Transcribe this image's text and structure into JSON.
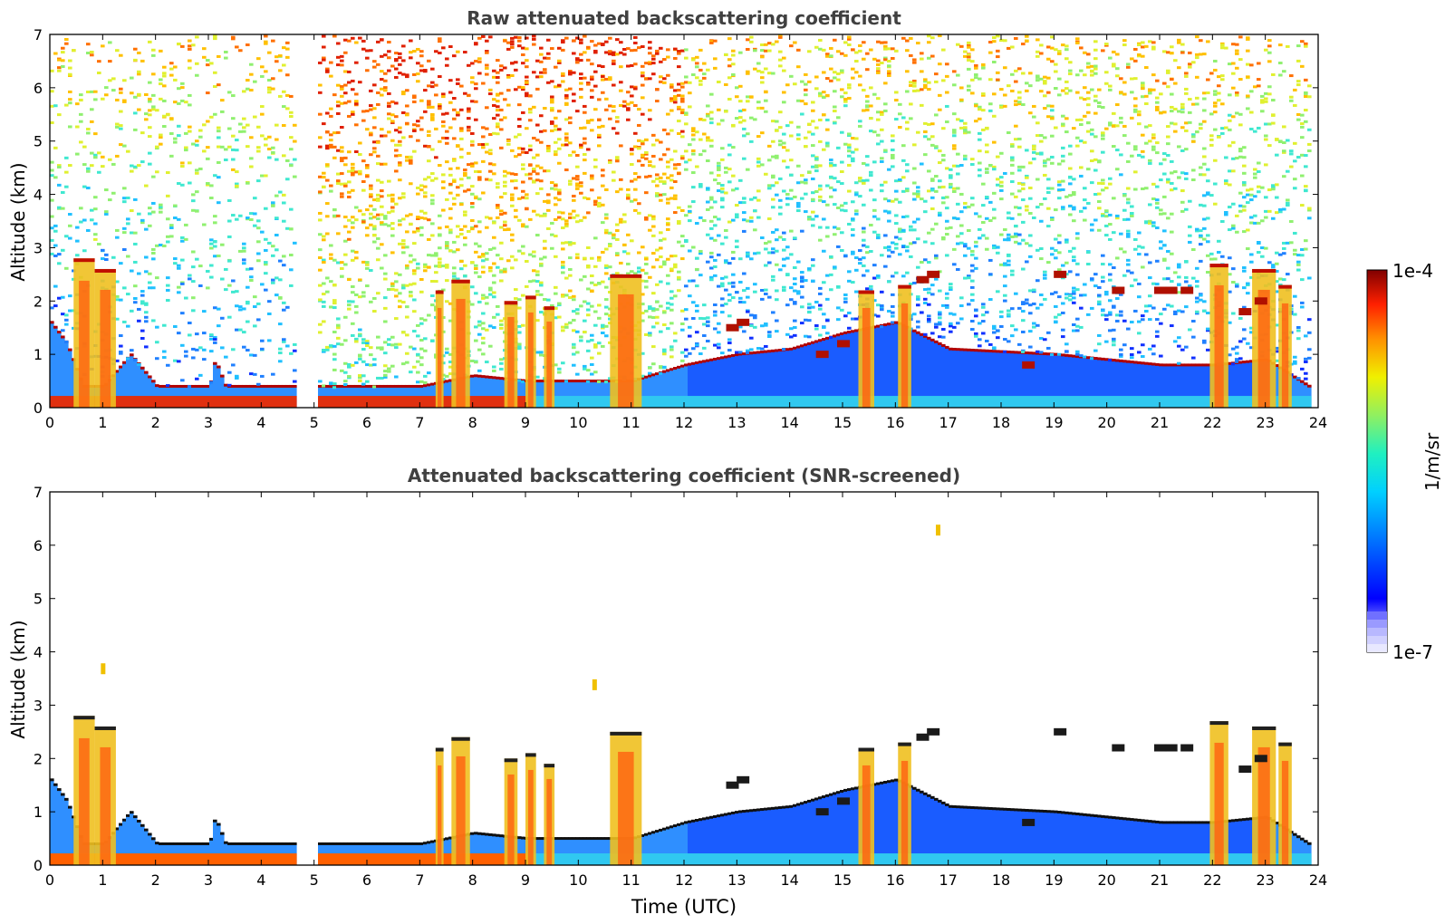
{
  "chart_data": [
    {
      "type": "heatmap",
      "title": "Raw attenuated backscattering coefficient",
      "xlabel": "",
      "ylabel": "Altitude (km)",
      "xlim": [
        0,
        24
      ],
      "ylim": [
        0,
        7
      ],
      "xticks": [
        "0",
        "1",
        "2",
        "3",
        "4",
        "5",
        "6",
        "7",
        "8",
        "9",
        "10",
        "11",
        "12",
        "13",
        "14",
        "15",
        "16",
        "17",
        "18",
        "19",
        "20",
        "21",
        "22",
        "23",
        "24"
      ],
      "yticks": [
        "0",
        "1",
        "2",
        "3",
        "4",
        "5",
        "6",
        "7"
      ],
      "data_gap_hours": [
        4.6,
        5.05
      ],
      "data_end_hour": 23.8,
      "features": {
        "boundary_layer_top_km": [
          [
            0,
            1.6
          ],
          [
            0.3,
            1.2
          ],
          [
            0.6,
            0.4
          ],
          [
            1,
            0.4
          ],
          [
            1.5,
            1.0
          ],
          [
            2,
            0.4
          ],
          [
            3,
            0.4
          ],
          [
            3.1,
            0.9
          ],
          [
            3.3,
            0.4
          ],
          [
            4.6,
            0.4
          ],
          [
            5.05,
            0.4
          ],
          [
            7,
            0.4
          ],
          [
            8,
            0.6
          ],
          [
            9,
            0.5
          ],
          [
            11,
            0.5
          ],
          [
            12,
            0.8
          ],
          [
            13,
            1.0
          ],
          [
            14,
            1.1
          ],
          [
            15,
            1.4
          ],
          [
            16,
            1.6
          ],
          [
            17,
            1.1
          ],
          [
            19,
            1.0
          ],
          [
            20,
            0.9
          ],
          [
            21,
            0.8
          ],
          [
            22,
            0.8
          ],
          [
            23,
            0.9
          ],
          [
            23.8,
            0.4
          ]
        ],
        "cloud_columns": [
          {
            "start": 0.45,
            "end": 0.85,
            "top_km": 2.8
          },
          {
            "start": 0.85,
            "end": 1.25,
            "top_km": 2.6
          },
          {
            "start": 7.3,
            "end": 7.45,
            "top_km": 2.2
          },
          {
            "start": 7.6,
            "end": 7.95,
            "top_km": 2.4
          },
          {
            "start": 8.6,
            "end": 8.85,
            "top_km": 2.0
          },
          {
            "start": 9.0,
            "end": 9.2,
            "top_km": 2.1
          },
          {
            "start": 9.35,
            "end": 9.55,
            "top_km": 1.9
          },
          {
            "start": 10.6,
            "end": 11.2,
            "top_km": 2.5
          },
          {
            "start": 15.3,
            "end": 15.6,
            "top_km": 2.2
          },
          {
            "start": 16.05,
            "end": 16.3,
            "top_km": 2.3
          },
          {
            "start": 21.95,
            "end": 22.3,
            "top_km": 2.7
          },
          {
            "start": 22.75,
            "end": 23.2,
            "top_km": 2.6
          },
          {
            "start": 23.25,
            "end": 23.5,
            "top_km": 2.3
          }
        ],
        "cloud_streaks": [
          [
            12.9,
            1.5
          ],
          [
            13.1,
            1.6
          ],
          [
            14.6,
            1.0
          ],
          [
            15.0,
            1.2
          ],
          [
            16.5,
            2.4
          ],
          [
            16.7,
            2.5
          ],
          [
            18.5,
            0.8
          ],
          [
            19.1,
            2.5
          ],
          [
            20.2,
            2.2
          ],
          [
            21.0,
            2.2
          ],
          [
            21.2,
            2.2
          ],
          [
            21.5,
            2.2
          ],
          [
            22.6,
            1.8
          ],
          [
            22.9,
            2.0
          ]
        ]
      }
    },
    {
      "type": "heatmap",
      "title": "Attenuated backscattering coefficient (SNR-screened)",
      "xlabel": "Time (UTC)",
      "ylabel": "Altitude (km)",
      "xlim": [
        0,
        24
      ],
      "ylim": [
        0,
        7
      ],
      "xticks": [
        "0",
        "1",
        "2",
        "3",
        "4",
        "5",
        "6",
        "7",
        "8",
        "9",
        "10",
        "11",
        "12",
        "13",
        "14",
        "15",
        "16",
        "17",
        "18",
        "19",
        "20",
        "21",
        "22",
        "23",
        "24"
      ],
      "yticks": [
        "0",
        "1",
        "2",
        "3",
        "4",
        "5",
        "6",
        "7"
      ],
      "isolated_targets": [
        [
          16.8,
          6.3
        ],
        [
          10.3,
          3.4
        ],
        [
          1.0,
          3.7
        ]
      ]
    }
  ],
  "colorbar": {
    "label": "1/m/sr",
    "max_label": "1e-4",
    "min_label": "1e-7"
  }
}
